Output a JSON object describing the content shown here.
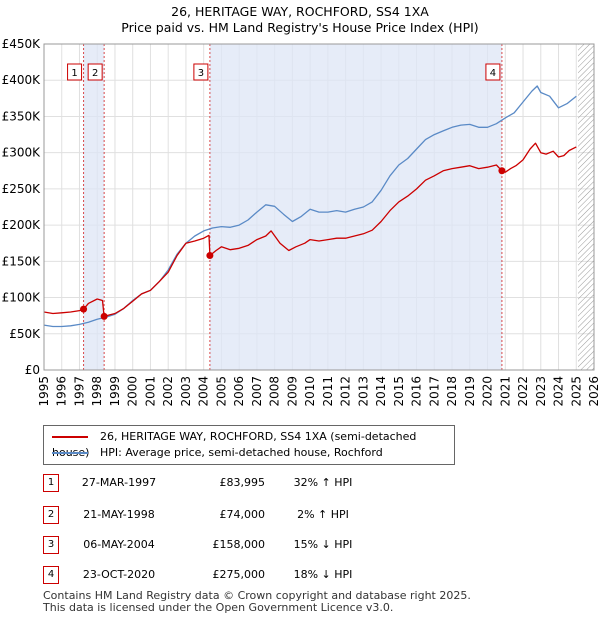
{
  "title": {
    "line1": "26, HERITAGE WAY, ROCHFORD, SS4 1XA",
    "line2": "Price paid vs. HM Land Registry's House Price Index (HPI)"
  },
  "legend": {
    "property": "26, HERITAGE WAY, ROCHFORD, SS4 1XA (semi-detached house)",
    "hpi": "HPI: Average price, semi-detached house, Rochford"
  },
  "transactions": [
    {
      "num": "1",
      "date": "27-MAR-1997",
      "price": "£83,995",
      "hpi": "32% ↑ HPI"
    },
    {
      "num": "2",
      "date": "21-MAY-1998",
      "price": "£74,000",
      "hpi": "2% ↑ HPI"
    },
    {
      "num": "3",
      "date": "06-MAY-2004",
      "price": "£158,000",
      "hpi": "15% ↓ HPI"
    },
    {
      "num": "4",
      "date": "23-OCT-2020",
      "price": "£275,000",
      "hpi": "18% ↓ HPI"
    }
  ],
  "footer": {
    "line1": "Contains HM Land Registry data © Crown copyright and database right 2025.",
    "line2": "This data is licensed under the Open Government Licence v3.0."
  },
  "colors": {
    "property": "#cc0000",
    "hpi": "#5a8ac6",
    "shade": "#dde6f5",
    "grid": "#e0e0e0"
  },
  "chart_data": {
    "type": "line",
    "xlim": [
      1995,
      2026
    ],
    "ylim": [
      0,
      450000
    ],
    "xticks": [
      1995,
      1996,
      1997,
      1998,
      1999,
      2000,
      2001,
      2002,
      2003,
      2004,
      2005,
      2006,
      2007,
      2008,
      2009,
      2010,
      2011,
      2012,
      2013,
      2014,
      2015,
      2016,
      2017,
      2018,
      2019,
      2020,
      2021,
      2022,
      2023,
      2024,
      2025,
      2026
    ],
    "yticks": [
      {
        "v": 0,
        "label": "£0"
      },
      {
        "v": 50000,
        "label": "£50K"
      },
      {
        "v": 100000,
        "label": "£100K"
      },
      {
        "v": 150000,
        "label": "£150K"
      },
      {
        "v": 200000,
        "label": "£200K"
      },
      {
        "v": 250000,
        "label": "£250K"
      },
      {
        "v": 300000,
        "label": "£300K"
      },
      {
        "v": 350000,
        "label": "£350K"
      },
      {
        "v": 400000,
        "label": "£400K"
      },
      {
        "v": 450000,
        "label": "£450K"
      }
    ],
    "shaded_ranges": [
      [
        1997.23,
        1998.39
      ],
      [
        2004.35,
        2020.81
      ]
    ],
    "future_hatch_from": 2025.1,
    "series": [
      {
        "name": "26, HERITAGE WAY, ROCHFORD, SS4 1XA (semi-detached house)",
        "x": [
          1995.0,
          1995.5,
          1996.0,
          1996.5,
          1997.0,
          1997.23,
          1997.5,
          1998.0,
          1998.3,
          1998.39,
          1998.7,
          1999.0,
          1999.5,
          2000.0,
          2000.5,
          2001.0,
          2001.5,
          2002.0,
          2002.5,
          2003.0,
          2003.5,
          2004.0,
          2004.3,
          2004.35,
          2004.7,
          2005.0,
          2005.5,
          2006.0,
          2006.5,
          2007.0,
          2007.5,
          2007.8,
          2008.3,
          2008.8,
          2009.2,
          2009.7,
          2010.0,
          2010.5,
          2011.0,
          2011.5,
          2012.0,
          2012.5,
          2013.0,
          2013.5,
          2014.0,
          2014.5,
          2015.0,
          2015.5,
          2016.0,
          2016.5,
          2017.0,
          2017.5,
          2018.0,
          2018.5,
          2019.0,
          2019.5,
          2020.0,
          2020.5,
          2020.81,
          2021.0,
          2021.3,
          2021.6,
          2022.0,
          2022.4,
          2022.7,
          2023.0,
          2023.3,
          2023.7,
          2024.0,
          2024.3,
          2024.6,
          2025.0
        ],
        "y": [
          80000,
          78000,
          79000,
          80000,
          82000,
          83995,
          92000,
          98000,
          96000,
          74000,
          76000,
          78000,
          85000,
          95000,
          105000,
          110000,
          122000,
          135000,
          158000,
          175000,
          178000,
          182000,
          186000,
          158000,
          165000,
          170000,
          166000,
          168000,
          172000,
          180000,
          185000,
          192000,
          175000,
          165000,
          170000,
          175000,
          180000,
          178000,
          180000,
          182000,
          182000,
          185000,
          188000,
          193000,
          205000,
          220000,
          232000,
          240000,
          250000,
          262000,
          268000,
          275000,
          278000,
          280000,
          282000,
          278000,
          280000,
          283000,
          275000,
          273000,
          278000,
          282000,
          290000,
          305000,
          313000,
          300000,
          298000,
          302000,
          294000,
          296000,
          303000,
          308000
        ]
      },
      {
        "name": "HPI: Average price, semi-detached house, Rochford",
        "x": [
          1995.0,
          1995.5,
          1996.0,
          1996.5,
          1997.0,
          1997.5,
          1998.0,
          1998.5,
          1999.0,
          1999.5,
          2000.0,
          2000.5,
          2001.0,
          2001.5,
          2002.0,
          2002.5,
          2003.0,
          2003.5,
          2004.0,
          2004.5,
          2005.0,
          2005.5,
          2006.0,
          2006.5,
          2007.0,
          2007.5,
          2008.0,
          2008.5,
          2009.0,
          2009.5,
          2010.0,
          2010.5,
          2011.0,
          2011.5,
          2012.0,
          2012.5,
          2013.0,
          2013.5,
          2014.0,
          2014.5,
          2015.0,
          2015.5,
          2016.0,
          2016.5,
          2017.0,
          2017.5,
          2018.0,
          2018.5,
          2019.0,
          2019.5,
          2020.0,
          2020.5,
          2021.0,
          2021.5,
          2022.0,
          2022.5,
          2022.8,
          2023.0,
          2023.5,
          2024.0,
          2024.5,
          2025.0
        ],
        "y": [
          62000,
          60000,
          60000,
          61000,
          63000,
          66000,
          70000,
          73000,
          77000,
          85000,
          96000,
          105000,
          110000,
          122000,
          138000,
          160000,
          175000,
          185000,
          192000,
          196000,
          198000,
          197000,
          200000,
          207000,
          218000,
          228000,
          226000,
          215000,
          205000,
          212000,
          222000,
          218000,
          218000,
          220000,
          218000,
          222000,
          225000,
          232000,
          248000,
          268000,
          283000,
          292000,
          305000,
          318000,
          325000,
          330000,
          335000,
          338000,
          339000,
          335000,
          335000,
          340000,
          348000,
          355000,
          370000,
          385000,
          392000,
          383000,
          378000,
          362000,
          368000,
          378000
        ]
      }
    ],
    "markers": [
      {
        "label": "1",
        "x": 1997.23,
        "y": 83995
      },
      {
        "label": "2",
        "x": 1998.39,
        "y": 74000
      },
      {
        "label": "3",
        "x": 2004.35,
        "y": 158000
      },
      {
        "label": "4",
        "x": 2020.81,
        "y": 275000
      }
    ]
  }
}
